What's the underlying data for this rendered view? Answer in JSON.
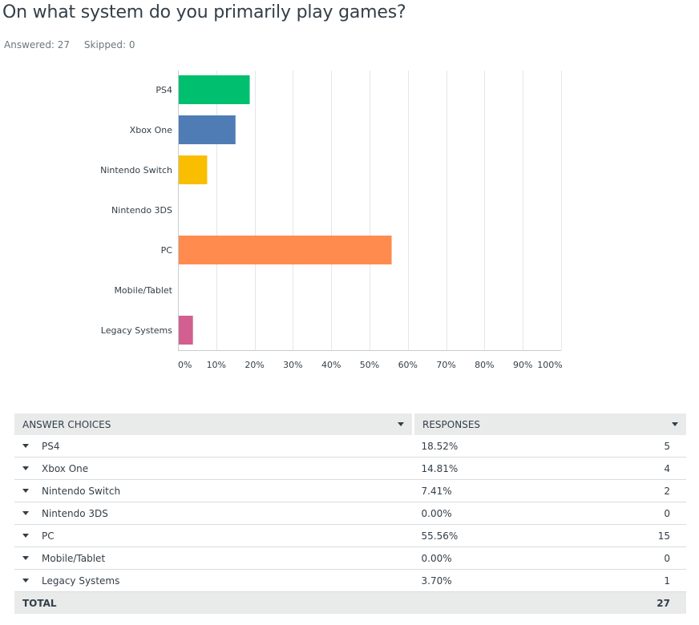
{
  "question": "On what system do you primarily play games?",
  "answered_label": "Answered: 27",
  "skipped_label": "Skipped: 0",
  "colors": {
    "grid": "#e4e6e7",
    "axis": "#c9cccf",
    "text": "#333e48"
  },
  "chart_data": {
    "type": "bar",
    "orientation": "horizontal",
    "categories": [
      "PS4",
      "Xbox One",
      "Nintendo Switch",
      "Nintendo 3DS",
      "PC",
      "Mobile/Tablet",
      "Legacy Systems"
    ],
    "values": [
      18.52,
      14.81,
      7.41,
      0.0,
      55.56,
      0.0,
      3.7
    ],
    "bar_colors": [
      "#00bf6f",
      "#507cb6",
      "#f9be00",
      "#6bc8cd",
      "#ff8b4f",
      "#7f7fff",
      "#d25f90"
    ],
    "xlim": [
      0,
      100
    ],
    "x_ticks": [
      "0%",
      "10%",
      "20%",
      "30%",
      "40%",
      "50%",
      "60%",
      "70%",
      "80%",
      "90%",
      "100%"
    ],
    "grid": true,
    "title": "",
    "xlabel": "",
    "ylabel": ""
  },
  "table": {
    "headers": [
      "ANSWER CHOICES",
      "RESPONSES"
    ],
    "rows": [
      {
        "choice": "PS4",
        "pct": "18.52%",
        "count": "5"
      },
      {
        "choice": "Xbox One",
        "pct": "14.81%",
        "count": "4"
      },
      {
        "choice": "Nintendo Switch",
        "pct": "7.41%",
        "count": "2"
      },
      {
        "choice": "Nintendo 3DS",
        "pct": "0.00%",
        "count": "0"
      },
      {
        "choice": "PC",
        "pct": "55.56%",
        "count": "15"
      },
      {
        "choice": "Mobile/Tablet",
        "pct": "0.00%",
        "count": "0"
      },
      {
        "choice": "Legacy Systems",
        "pct": "3.70%",
        "count": "1"
      }
    ],
    "total_label": "TOTAL",
    "total_count": "27"
  }
}
